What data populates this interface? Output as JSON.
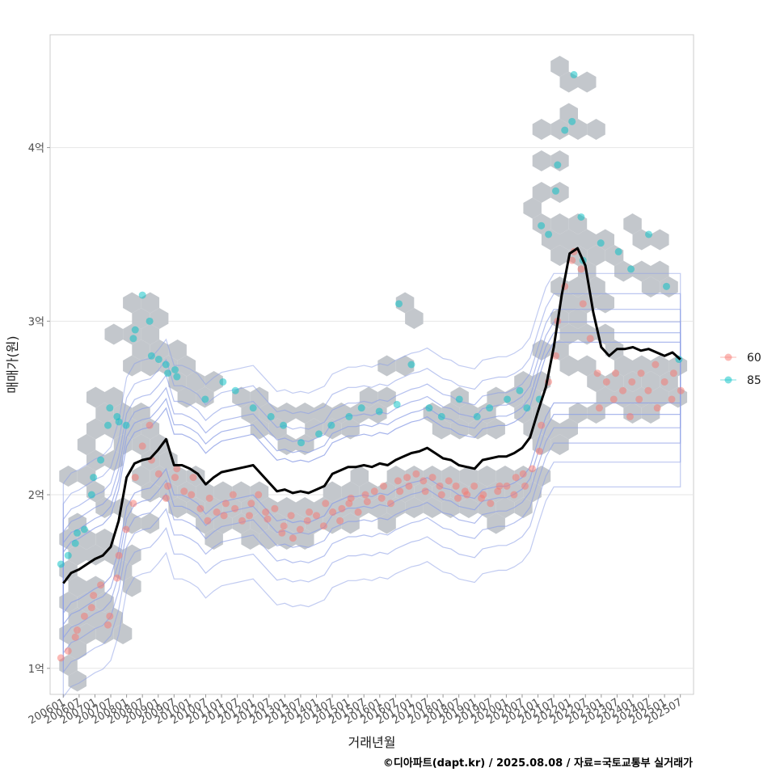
{
  "chart_data": {
    "type": "scatter",
    "xlabel": "거래년월",
    "ylabel": "매매가(원)",
    "caption": "©디아파트(dapt.kr) / 2025.08.08 / 자료=국토교통부 실거래가",
    "y_unit": "억",
    "ylim": [
      0.85,
      4.65
    ],
    "y_ticks": [
      {
        "value": 1,
        "label": "1억"
      },
      {
        "value": 2,
        "label": "2억"
      },
      {
        "value": 3,
        "label": "3억"
      },
      {
        "value": 4,
        "label": "4억"
      }
    ],
    "x_range": [
      "2005-08",
      "2025-12"
    ],
    "x_tick_labels": [
      "200601",
      "200607",
      "200701",
      "200707",
      "200801",
      "200807",
      "200901",
      "200907",
      "201001",
      "201007",
      "201101",
      "201107",
      "201201",
      "201207",
      "201301",
      "201307",
      "201401",
      "201407",
      "201501",
      "201507",
      "201601",
      "201607",
      "201701",
      "201707",
      "201801",
      "201807",
      "201901",
      "201907",
      "202001",
      "202007",
      "202101",
      "202107",
      "202201",
      "202207",
      "202301",
      "202307",
      "202401",
      "202407",
      "202501",
      "202507"
    ],
    "legend": {
      "position": "right",
      "entries": [
        {
          "name": "60",
          "color": "#F8766D"
        },
        {
          "name": "85",
          "color": "#00BFC4"
        }
      ]
    },
    "layers": [
      "hexbin density",
      "2d density contours",
      "points by area",
      "moving average line"
    ],
    "moving_average": {
      "name": "moving average",
      "color": "#000000",
      "points": [
        [
          "2006-01",
          1.49
        ],
        [
          "2006-04",
          1.55
        ],
        [
          "2006-07",
          1.57
        ],
        [
          "2006-10",
          1.6
        ],
        [
          "2007-01",
          1.63
        ],
        [
          "2007-04",
          1.65
        ],
        [
          "2007-07",
          1.7
        ],
        [
          "2007-10",
          1.85
        ],
        [
          "2008-01",
          2.1
        ],
        [
          "2008-04",
          2.18
        ],
        [
          "2008-07",
          2.2
        ],
        [
          "2008-10",
          2.21
        ],
        [
          "2009-01",
          2.26
        ],
        [
          "2009-04",
          2.32
        ],
        [
          "2009-07",
          2.17
        ],
        [
          "2009-10",
          2.17
        ],
        [
          "2010-01",
          2.15
        ],
        [
          "2010-04",
          2.12
        ],
        [
          "2010-07",
          2.06
        ],
        [
          "2010-10",
          2.1
        ],
        [
          "2011-01",
          2.13
        ],
        [
          "2011-04",
          2.14
        ],
        [
          "2011-07",
          2.15
        ],
        [
          "2011-10",
          2.16
        ],
        [
          "2012-01",
          2.17
        ],
        [
          "2012-04",
          2.12
        ],
        [
          "2012-07",
          2.07
        ],
        [
          "2012-10",
          2.02
        ],
        [
          "2013-01",
          2.03
        ],
        [
          "2013-04",
          2.01
        ],
        [
          "2013-07",
          2.02
        ],
        [
          "2013-10",
          2.01
        ],
        [
          "2014-01",
          2.03
        ],
        [
          "2014-04",
          2.05
        ],
        [
          "2014-07",
          2.12
        ],
        [
          "2014-10",
          2.14
        ],
        [
          "2015-01",
          2.16
        ],
        [
          "2015-04",
          2.16
        ],
        [
          "2015-07",
          2.17
        ],
        [
          "2015-10",
          2.16
        ],
        [
          "2016-01",
          2.18
        ],
        [
          "2016-04",
          2.17
        ],
        [
          "2016-07",
          2.2
        ],
        [
          "2016-10",
          2.22
        ],
        [
          "2017-01",
          2.24
        ],
        [
          "2017-04",
          2.25
        ],
        [
          "2017-07",
          2.27
        ],
        [
          "2017-10",
          2.24
        ],
        [
          "2018-01",
          2.21
        ],
        [
          "2018-04",
          2.2
        ],
        [
          "2018-07",
          2.17
        ],
        [
          "2018-10",
          2.16
        ],
        [
          "2019-01",
          2.15
        ],
        [
          "2019-04",
          2.2
        ],
        [
          "2019-07",
          2.21
        ],
        [
          "2019-10",
          2.22
        ],
        [
          "2020-01",
          2.22
        ],
        [
          "2020-04",
          2.24
        ],
        [
          "2020-07",
          2.27
        ],
        [
          "2020-10",
          2.33
        ],
        [
          "2021-01",
          2.48
        ],
        [
          "2021-04",
          2.62
        ],
        [
          "2021-07",
          2.85
        ],
        [
          "2021-10",
          3.15
        ],
        [
          "2022-01",
          3.39
        ],
        [
          "2022-04",
          3.42
        ],
        [
          "2022-07",
          3.32
        ],
        [
          "2022-10",
          3.05
        ],
        [
          "2023-01",
          2.85
        ],
        [
          "2023-04",
          2.8
        ],
        [
          "2023-07",
          2.84
        ],
        [
          "2023-10",
          2.84
        ],
        [
          "2024-01",
          2.85
        ],
        [
          "2024-04",
          2.83
        ],
        [
          "2024-07",
          2.84
        ],
        [
          "2024-10",
          2.82
        ],
        [
          "2025-01",
          2.8
        ],
        [
          "2025-04",
          2.82
        ],
        [
          "2025-07",
          2.78
        ]
      ]
    },
    "series": [
      {
        "name": "60",
        "color": "#F8766D",
        "points": [
          [
            "2006-01",
            1.06
          ],
          [
            "2006-03",
            1.1
          ],
          [
            "2006-05",
            1.18
          ],
          [
            "2006-07",
            1.22
          ],
          [
            "2006-09",
            1.3
          ],
          [
            "2006-11",
            1.35
          ],
          [
            "2007-01",
            1.42
          ],
          [
            "2007-03",
            1.48
          ],
          [
            "2007-05",
            1.25
          ],
          [
            "2007-07",
            1.3
          ],
          [
            "2007-09",
            1.52
          ],
          [
            "2007-11",
            1.65
          ],
          [
            "2008-01",
            1.8
          ],
          [
            "2008-03",
            1.95
          ],
          [
            "2008-05",
            2.1
          ],
          [
            "2008-07",
            2.28
          ],
          [
            "2008-09",
            2.4
          ],
          [
            "2008-11",
            2.2
          ],
          [
            "2009-01",
            2.12
          ],
          [
            "2009-03",
            1.98
          ],
          [
            "2009-05",
            2.05
          ],
          [
            "2009-07",
            2.1
          ],
          [
            "2009-09",
            2.15
          ],
          [
            "2009-11",
            2.02
          ],
          [
            "2010-01",
            2.0
          ],
          [
            "2010-03",
            2.1
          ],
          [
            "2010-05",
            1.92
          ],
          [
            "2010-07",
            1.85
          ],
          [
            "2010-09",
            1.98
          ],
          [
            "2010-11",
            1.9
          ],
          [
            "2011-01",
            1.88
          ],
          [
            "2011-03",
            1.95
          ],
          [
            "2011-05",
            2.0
          ],
          [
            "2011-07",
            1.92
          ],
          [
            "2011-09",
            1.85
          ],
          [
            "2011-11",
            1.88
          ],
          [
            "2012-01",
            1.95
          ],
          [
            "2012-03",
            2.0
          ],
          [
            "2012-05",
            1.9
          ],
          [
            "2012-07",
            1.86
          ],
          [
            "2012-09",
            1.92
          ],
          [
            "2012-11",
            1.78
          ],
          [
            "2013-01",
            1.82
          ],
          [
            "2013-03",
            1.88
          ],
          [
            "2013-05",
            1.75
          ],
          [
            "2013-07",
            1.8
          ],
          [
            "2013-09",
            1.85
          ],
          [
            "2013-11",
            1.9
          ],
          [
            "2014-01",
            1.88
          ],
          [
            "2014-03",
            1.82
          ],
          [
            "2014-05",
            1.95
          ],
          [
            "2014-07",
            1.9
          ],
          [
            "2014-09",
            1.85
          ],
          [
            "2014-11",
            1.92
          ],
          [
            "2015-01",
            1.95
          ],
          [
            "2015-03",
            1.98
          ],
          [
            "2015-05",
            1.9
          ],
          [
            "2015-07",
            2.0
          ],
          [
            "2015-09",
            1.96
          ],
          [
            "2015-11",
            2.02
          ],
          [
            "2016-01",
            1.98
          ],
          [
            "2016-03",
            2.05
          ],
          [
            "2016-05",
            1.95
          ],
          [
            "2016-07",
            2.08
          ],
          [
            "2016-09",
            2.02
          ],
          [
            "2016-11",
            2.1
          ],
          [
            "2017-01",
            2.05
          ],
          [
            "2017-03",
            2.12
          ],
          [
            "2017-05",
            2.08
          ],
          [
            "2017-07",
            2.02
          ],
          [
            "2017-09",
            2.1
          ],
          [
            "2017-11",
            2.05
          ],
          [
            "2018-01",
            2.0
          ],
          [
            "2018-03",
            2.08
          ],
          [
            "2018-05",
            2.05
          ],
          [
            "2018-07",
            1.98
          ],
          [
            "2018-09",
            2.02
          ],
          [
            "2018-11",
            2.0
          ],
          [
            "2019-01",
            2.05
          ],
          [
            "2019-03",
            1.98
          ],
          [
            "2019-05",
            2.0
          ],
          [
            "2019-07",
            1.95
          ],
          [
            "2019-09",
            2.02
          ],
          [
            "2019-11",
            2.05
          ],
          [
            "2020-01",
            2.05
          ],
          [
            "2020-03",
            2.0
          ],
          [
            "2020-05",
            2.1
          ],
          [
            "2020-07",
            2.12
          ],
          [
            "2020-09",
            2.05
          ],
          [
            "2020-11",
            2.15
          ],
          [
            "2021-01",
            2.25
          ],
          [
            "2021-03",
            2.4
          ],
          [
            "2021-05",
            2.65
          ],
          [
            "2021-07",
            2.8
          ],
          [
            "2021-09",
            3.0
          ],
          [
            "2021-11",
            3.2
          ],
          [
            "2022-01",
            3.35
          ],
          [
            "2022-03",
            3.4
          ],
          [
            "2022-05",
            3.3
          ],
          [
            "2022-07",
            3.1
          ],
          [
            "2022-09",
            2.9
          ],
          [
            "2022-11",
            2.7
          ],
          [
            "2023-01",
            2.5
          ],
          [
            "2023-03",
            2.65
          ],
          [
            "2023-05",
            2.55
          ],
          [
            "2023-07",
            2.7
          ],
          [
            "2023-09",
            2.6
          ],
          [
            "2023-11",
            2.45
          ],
          [
            "2024-01",
            2.65
          ],
          [
            "2024-03",
            2.55
          ],
          [
            "2024-05",
            2.7
          ],
          [
            "2024-07",
            2.6
          ],
          [
            "2024-09",
            2.75
          ],
          [
            "2024-11",
            2.5
          ],
          [
            "2025-01",
            2.65
          ],
          [
            "2025-03",
            2.55
          ],
          [
            "2025-05",
            2.7
          ],
          [
            "2025-07",
            2.6
          ]
        ]
      },
      {
        "name": "85",
        "color": "#00BFC4",
        "points": [
          [
            "2006-01",
            1.6
          ],
          [
            "2006-03",
            1.65
          ],
          [
            "2006-05",
            1.72
          ],
          [
            "2006-07",
            1.78
          ],
          [
            "2006-09",
            1.8
          ],
          [
            "2006-11",
            2.0
          ],
          [
            "2007-01",
            2.1
          ],
          [
            "2007-03",
            2.2
          ],
          [
            "2007-05",
            2.4
          ],
          [
            "2007-07",
            2.5
          ],
          [
            "2007-09",
            2.45
          ],
          [
            "2007-11",
            2.42
          ],
          [
            "2008-01",
            2.4
          ],
          [
            "2008-03",
            2.9
          ],
          [
            "2008-05",
            2.95
          ],
          [
            "2008-07",
            3.15
          ],
          [
            "2008-09",
            3.0
          ],
          [
            "2008-11",
            2.8
          ],
          [
            "2009-01",
            2.78
          ],
          [
            "2009-03",
            2.75
          ],
          [
            "2009-05",
            2.7
          ],
          [
            "2009-07",
            2.72
          ],
          [
            "2009-09",
            2.68
          ],
          [
            "2010-07",
            2.55
          ],
          [
            "2011-01",
            2.65
          ],
          [
            "2011-07",
            2.6
          ],
          [
            "2012-01",
            2.5
          ],
          [
            "2012-07",
            2.45
          ],
          [
            "2013-01",
            2.4
          ],
          [
            "2013-07",
            2.3
          ],
          [
            "2014-01",
            2.35
          ],
          [
            "2014-07",
            2.4
          ],
          [
            "2015-01",
            2.45
          ],
          [
            "2015-07",
            2.5
          ],
          [
            "2016-01",
            2.48
          ],
          [
            "2016-07",
            2.52
          ],
          [
            "2016-09",
            3.1
          ],
          [
            "2017-01",
            2.75
          ],
          [
            "2017-07",
            2.5
          ],
          [
            "2018-01",
            2.45
          ],
          [
            "2018-07",
            2.55
          ],
          [
            "2019-01",
            2.45
          ],
          [
            "2019-07",
            2.5
          ],
          [
            "2020-01",
            2.55
          ],
          [
            "2020-07",
            2.6
          ],
          [
            "2020-09",
            2.5
          ],
          [
            "2021-01",
            2.55
          ],
          [
            "2021-03",
            3.55
          ],
          [
            "2021-05",
            3.5
          ],
          [
            "2021-07",
            3.75
          ],
          [
            "2021-09",
            3.9
          ],
          [
            "2021-11",
            4.1
          ],
          [
            "2022-01",
            4.15
          ],
          [
            "2022-03",
            4.42
          ],
          [
            "2022-05",
            3.6
          ],
          [
            "2022-07",
            3.35
          ],
          [
            "2023-01",
            3.45
          ],
          [
            "2023-07",
            3.4
          ],
          [
            "2024-01",
            3.3
          ],
          [
            "2024-07",
            3.5
          ],
          [
            "2025-01",
            3.2
          ],
          [
            "2025-07",
            2.78
          ]
        ]
      }
    ]
  }
}
